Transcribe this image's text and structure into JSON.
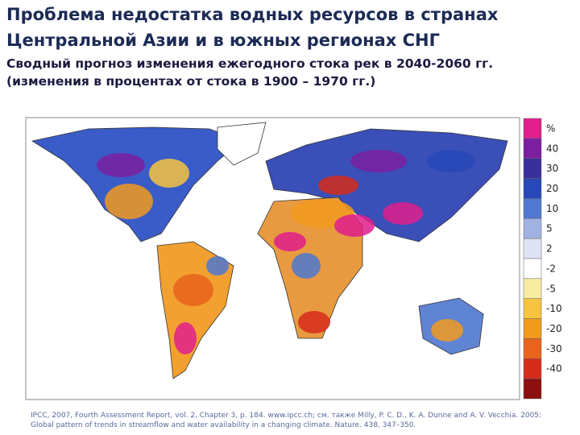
{
  "header": {
    "title": [
      "Проблема недостатка водных ресурсов в странах",
      "Центральной Азии и в южных регионах СНГ"
    ],
    "subtitle": [
      "Сводный прогноз изменения ежегодного стока рек в 2040-2060 гг.",
      "(изменения в процентах от стока в 1900 – 1970 гг.)"
    ]
  },
  "legend": {
    "unit": "%",
    "labels": [
      "40",
      "30",
      "20",
      "10",
      "5",
      "2",
      "-2",
      "-5",
      "-10",
      "-20",
      "-30",
      "-40"
    ],
    "colors": [
      "#e01e8c",
      "#7b1fa0",
      "#3a2f9a",
      "#2848b8",
      "#4f78d0",
      "#9fb2e2",
      "#dfe3f4",
      "#ffffff",
      "#f7eca0",
      "#f6c440",
      "#f29a1e",
      "#e8641c",
      "#d62c1c",
      "#8c1010"
    ]
  },
  "source": "IPCC, 2007, Fourth Assessment Report, vol. 2, Chapter 3, p. 184. www.ipcc.ch; см. также Milly, P. C. D., K. A. Dunne and A. V. Vecchia. 2005: Global pattern of trends in streamflow and water availability in a changing climate. Nature. 438, 347–350."
}
